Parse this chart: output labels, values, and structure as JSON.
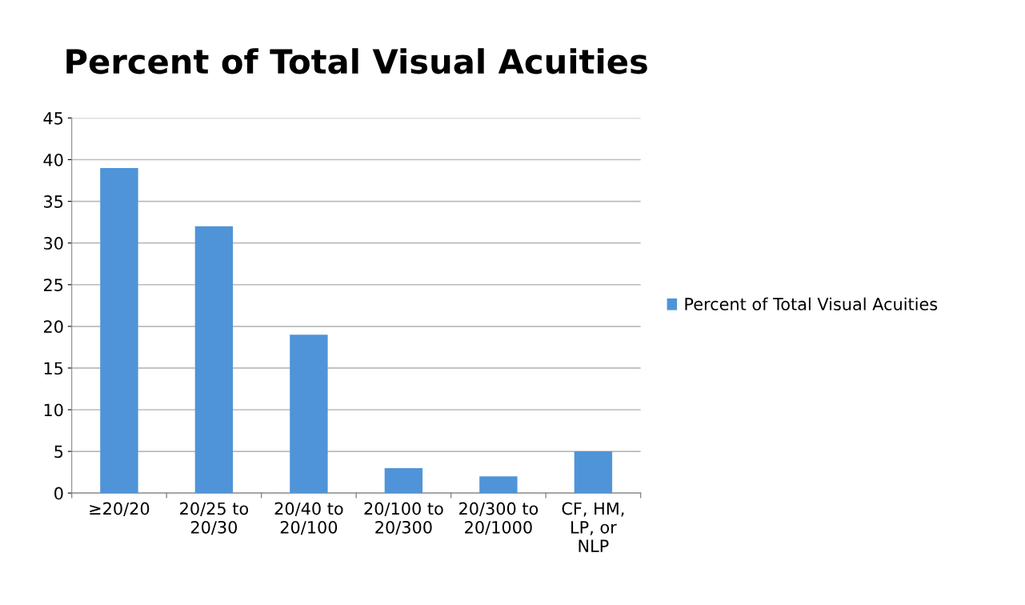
{
  "chart_data": {
    "type": "bar",
    "title": "Percent of Total Visual Acuities",
    "categories": [
      "≥20/20",
      "20/25 to\n20/30",
      "20/40 to\n20/100",
      "20/100 to\n20/300",
      "20/300 to\n20/1000",
      "CF, HM,\nLP, or\nNLP"
    ],
    "series": [
      {
        "name": "Percent of Total Visual Acuities",
        "color": "#4f94d8",
        "values": [
          39,
          32,
          19,
          3,
          2,
          5
        ]
      }
    ],
    "ylim": [
      0,
      45
    ],
    "yticks": [
      0,
      5,
      10,
      15,
      20,
      25,
      30,
      35,
      40,
      45
    ],
    "grid": "y",
    "legend": "right"
  }
}
